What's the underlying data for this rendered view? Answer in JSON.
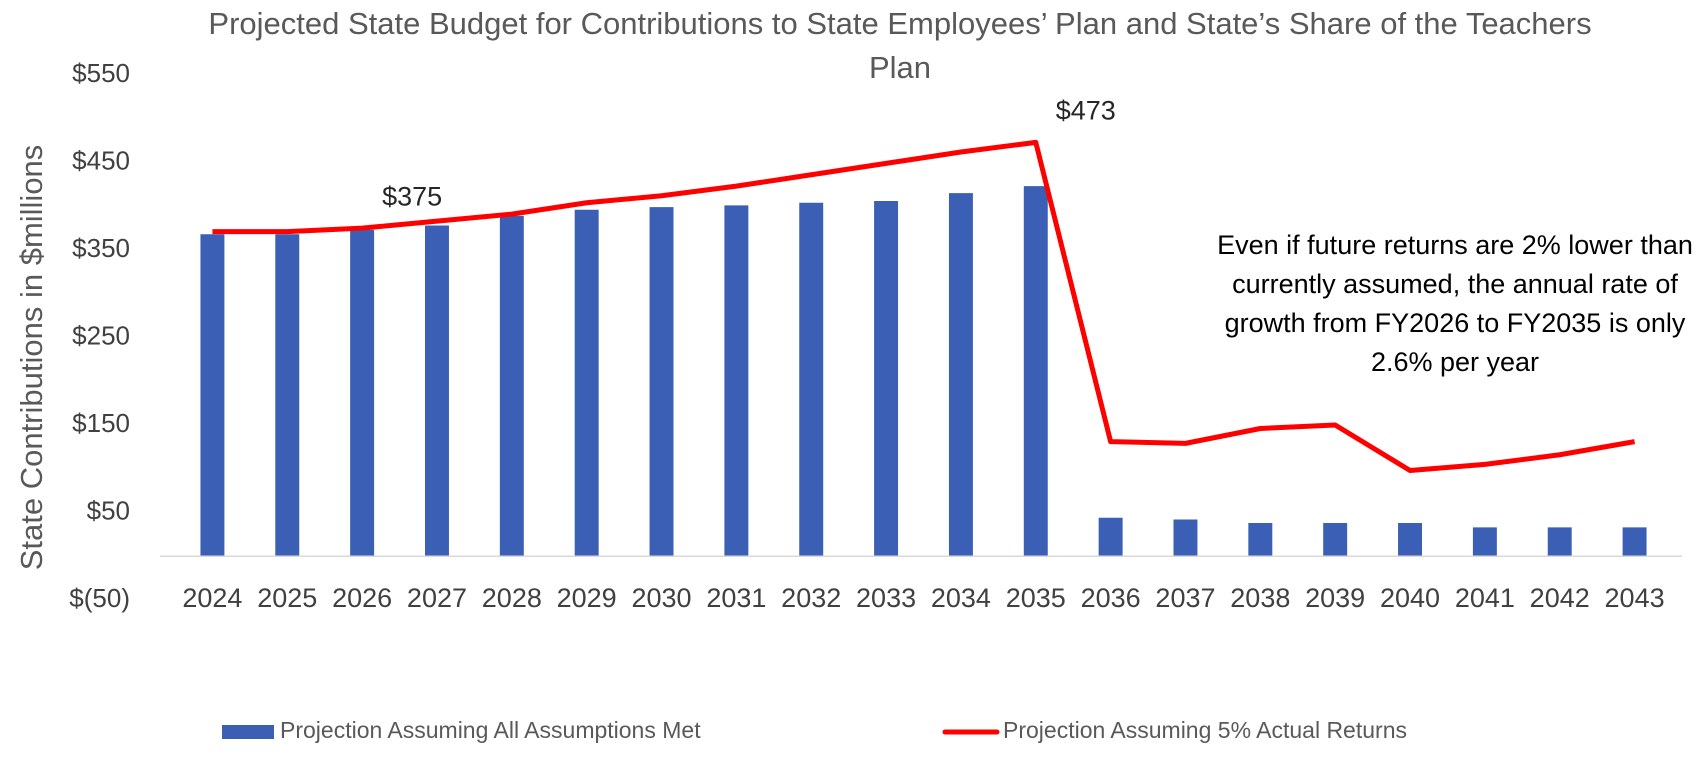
{
  "chart_data": {
    "type": "bar_line",
    "title": "Projected State Budget for Contributions to State Employees’ Plan and State’s Share of the Teachers Plan",
    "y_axis_label": "State Contributions in $millions",
    "annotation": "Even if future returns are 2% lower than currently assumed, the annual rate of growth from FY2026 to FY2035 is only 2.6% per year",
    "categories": [
      "2024",
      "2025",
      "2026",
      "2027",
      "2028",
      "2029",
      "2030",
      "2031",
      "2032",
      "2033",
      "2034",
      "2035",
      "2036",
      "2037",
      "2038",
      "2039",
      "2040",
      "2041",
      "2042",
      "2043"
    ],
    "series": [
      {
        "name": "Projection Assuming All Assumptions Met",
        "type": "bar",
        "color": "#3a5fb5",
        "values": [
          368,
          368,
          373,
          378,
          389,
          396,
          399,
          401,
          404,
          406,
          415,
          423,
          44,
          42,
          38,
          38,
          38,
          33,
          33,
          33
        ]
      },
      {
        "name": "Projection Assuming 5% Actual Returns",
        "type": "line",
        "color": "#ff0000",
        "values": [
          371,
          371,
          375,
          383,
          391,
          404,
          412,
          423,
          436,
          449,
          462,
          473,
          131,
          129,
          146,
          150,
          98,
          105,
          116,
          131
        ],
        "value_labels": [
          null,
          null,
          "$375",
          null,
          null,
          null,
          null,
          null,
          null,
          null,
          null,
          "$473",
          null,
          null,
          null,
          null,
          null,
          null,
          null,
          null
        ]
      }
    ],
    "ylim": [
      -50,
      550
    ],
    "yticks": [
      {
        "value": -50,
        "label": "$(50)"
      },
      {
        "value": 50,
        "label": "$50"
      },
      {
        "value": 150,
        "label": "$150"
      },
      {
        "value": 250,
        "label": "$250"
      },
      {
        "value": 350,
        "label": "$350"
      },
      {
        "value": 450,
        "label": "$450"
      },
      {
        "value": 550,
        "label": "$550"
      }
    ],
    "grid": false,
    "legend": "bottom"
  }
}
